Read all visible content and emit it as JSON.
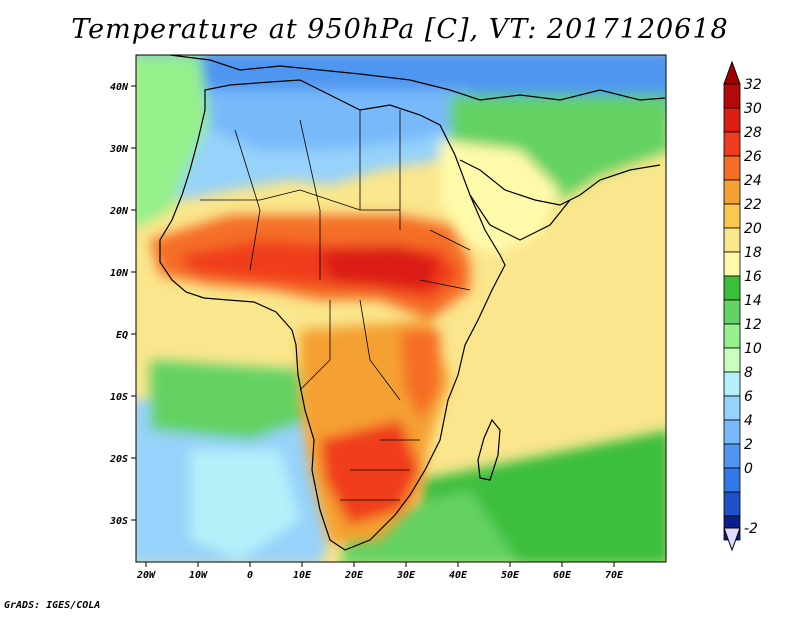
{
  "title": "Temperature at 950hPa [C], VT: 2017120618",
  "credit": "GrADS: IGES/COLA",
  "map": {
    "region": "Africa, Arabian Peninsula and western Indian Ocean",
    "variable": "temperature",
    "units": "C",
    "level": "950hPa",
    "valid_time": "2017120618",
    "lon_ticks": [
      "20W",
      "10W",
      "0",
      "10E",
      "20E",
      "30E",
      "40E",
      "50E",
      "60E",
      "70E"
    ],
    "lat_ticks": [
      "40N",
      "30N",
      "20N",
      "10N",
      "EQ",
      "10S",
      "20S",
      "30S"
    ]
  },
  "colorbar": {
    "labels": [
      "32",
      "30",
      "28",
      "26",
      "24",
      "22",
      "20",
      "18",
      "16",
      "14",
      "12",
      "10",
      "8",
      "6",
      "4",
      "2",
      "0",
      "-2"
    ],
    "colors": [
      "#b40a0a",
      "#dc1e14",
      "#f03c1e",
      "#f56e28",
      "#f5a032",
      "#fac850",
      "#fae68c",
      "#fffaaa",
      "#3cbe3c",
      "#64d264",
      "#96f08c",
      "#c8ffbe",
      "#b4f0fa",
      "#96d2fa",
      "#78b9fa",
      "#5096f0",
      "#3278e6",
      "#1e50c8",
      "#0a1e8c"
    ],
    "low_arrow_color": "#e1dcff",
    "high_arrow_color": "#a00000"
  }
}
